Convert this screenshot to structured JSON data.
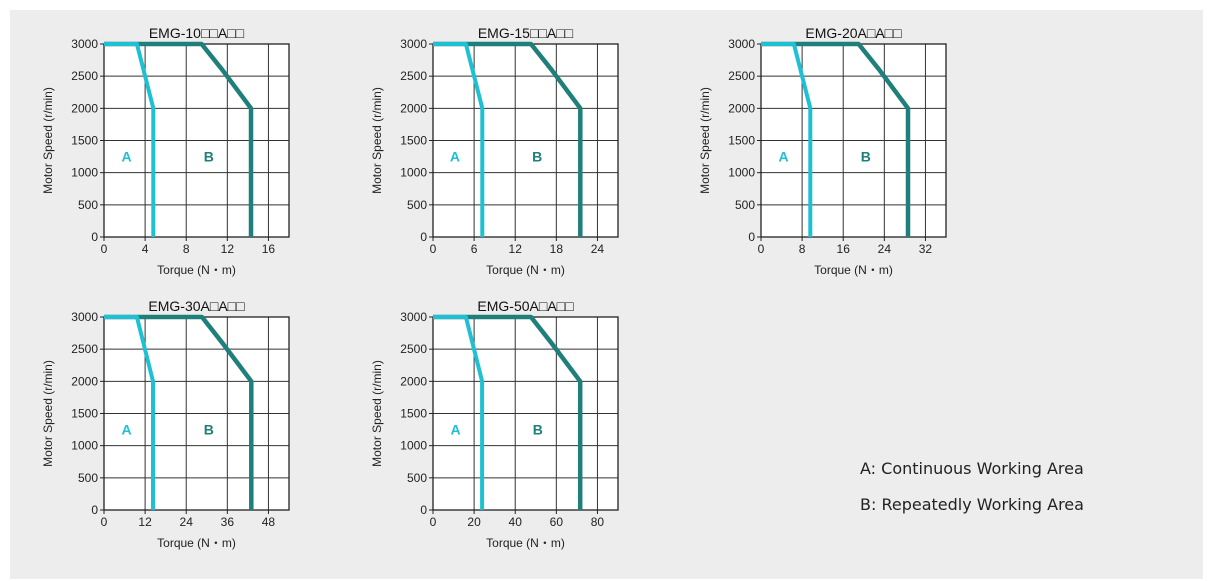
{
  "colors": {
    "continuous": "#1ec0d3",
    "repeated": "#1f7f7b",
    "background": "#ededed"
  },
  "legend": {
    "a": "A: Continuous Working Area",
    "b": "B: Repeatedly Working Area"
  },
  "chart_data": [
    {
      "type": "line",
      "title": "EMG-10□□A□□",
      "xlabel": "Torque (N・m)",
      "ylabel": "Motor Speed (r/min)",
      "xlim": [
        0,
        18
      ],
      "ylim": [
        0,
        3000
      ],
      "xticks": [
        0,
        4,
        8,
        12,
        16
      ],
      "yticks": [
        0,
        500,
        1000,
        1500,
        2000,
        2500,
        3000
      ],
      "grid": true,
      "area_labels": [
        {
          "text": "A",
          "x": 2.2,
          "y": 1250
        },
        {
          "text": "B",
          "x": 10.2,
          "y": 1250
        }
      ],
      "series": [
        {
          "name": "A",
          "points": [
            [
              0,
              3000
            ],
            [
              3.2,
              3000
            ],
            [
              4.8,
              2000
            ],
            [
              4.8,
              0
            ]
          ]
        },
        {
          "name": "B",
          "points": [
            [
              0,
              3000
            ],
            [
              9.5,
              3000
            ],
            [
              11.5,
              2600
            ],
            [
              14.3,
              2000
            ],
            [
              14.3,
              0
            ]
          ]
        }
      ]
    },
    {
      "type": "line",
      "title": "EMG-15□□A□□",
      "xlabel": "Torque (N・m)",
      "ylabel": "Motor Speed (r/min)",
      "xlim": [
        0,
        27
      ],
      "ylim": [
        0,
        3000
      ],
      "xticks": [
        0,
        6,
        12,
        18,
        24
      ],
      "yticks": [
        0,
        500,
        1000,
        1500,
        2000,
        2500,
        3000
      ],
      "grid": true,
      "area_labels": [
        {
          "text": "A",
          "x": 3.2,
          "y": 1250
        },
        {
          "text": "B",
          "x": 15.2,
          "y": 1250
        }
      ],
      "series": [
        {
          "name": "A",
          "points": [
            [
              0,
              3000
            ],
            [
              4.8,
              3000
            ],
            [
              7.2,
              2000
            ],
            [
              7.2,
              0
            ]
          ]
        },
        {
          "name": "B",
          "points": [
            [
              0,
              3000
            ],
            [
              14.3,
              3000
            ],
            [
              17.3,
              2600
            ],
            [
              21.5,
              2000
            ],
            [
              21.5,
              0
            ]
          ]
        }
      ]
    },
    {
      "type": "line",
      "title": "EMG-20A□A□□",
      "xlabel": "Torque (N・m)",
      "ylabel": "Motor Speed (r/min)",
      "xlim": [
        0,
        36
      ],
      "ylim": [
        0,
        3000
      ],
      "xticks": [
        0,
        8,
        16,
        24,
        32
      ],
      "yticks": [
        0,
        500,
        1000,
        1500,
        2000,
        2500,
        3000
      ],
      "grid": true,
      "area_labels": [
        {
          "text": "A",
          "x": 4.4,
          "y": 1250
        },
        {
          "text": "B",
          "x": 20.4,
          "y": 1250
        }
      ],
      "series": [
        {
          "name": "A",
          "points": [
            [
              0,
              3000
            ],
            [
              6.4,
              3000
            ],
            [
              9.6,
              2000
            ],
            [
              9.6,
              0
            ]
          ]
        },
        {
          "name": "B",
          "points": [
            [
              0,
              3000
            ],
            [
              19,
              3000
            ],
            [
              23,
              2600
            ],
            [
              28.6,
              2000
            ],
            [
              28.6,
              0
            ]
          ]
        }
      ]
    },
    {
      "type": "line",
      "title": "EMG-30A□A□□",
      "xlabel": "Torque (N・m)",
      "ylabel": "Motor Speed (r/min)",
      "xlim": [
        0,
        54
      ],
      "ylim": [
        0,
        3000
      ],
      "xticks": [
        0,
        12,
        24,
        36,
        48
      ],
      "yticks": [
        0,
        500,
        1000,
        1500,
        2000,
        2500,
        3000
      ],
      "grid": true,
      "area_labels": [
        {
          "text": "A",
          "x": 6.6,
          "y": 1250
        },
        {
          "text": "B",
          "x": 30.6,
          "y": 1250
        }
      ],
      "series": [
        {
          "name": "A",
          "points": [
            [
              0,
              3000
            ],
            [
              9.6,
              3000
            ],
            [
              14.3,
              2000
            ],
            [
              14.3,
              0
            ]
          ]
        },
        {
          "name": "B",
          "points": [
            [
              0,
              3000
            ],
            [
              28.6,
              3000
            ],
            [
              34.5,
              2600
            ],
            [
              43,
              2000
            ],
            [
              43,
              0
            ]
          ]
        }
      ]
    },
    {
      "type": "line",
      "title": "EMG-50A□A□□",
      "xlabel": "Torque (N・m)",
      "ylabel": "Motor Speed (r/min)",
      "xlim": [
        0,
        90
      ],
      "ylim": [
        0,
        3000
      ],
      "xticks": [
        0,
        20,
        40,
        60,
        80
      ],
      "yticks": [
        0,
        500,
        1000,
        1500,
        2000,
        2500,
        3000
      ],
      "grid": true,
      "area_labels": [
        {
          "text": "A",
          "x": 11,
          "y": 1250
        },
        {
          "text": "B",
          "x": 51,
          "y": 1250
        }
      ],
      "series": [
        {
          "name": "A",
          "points": [
            [
              0,
              3000
            ],
            [
              16,
              3000
            ],
            [
              23.9,
              2000
            ],
            [
              23.9,
              0
            ]
          ]
        },
        {
          "name": "B",
          "points": [
            [
              0,
              3000
            ],
            [
              47.7,
              3000
            ],
            [
              57.5,
              2600
            ],
            [
              71.6,
              2000
            ],
            [
              71.6,
              0
            ]
          ]
        }
      ]
    }
  ]
}
